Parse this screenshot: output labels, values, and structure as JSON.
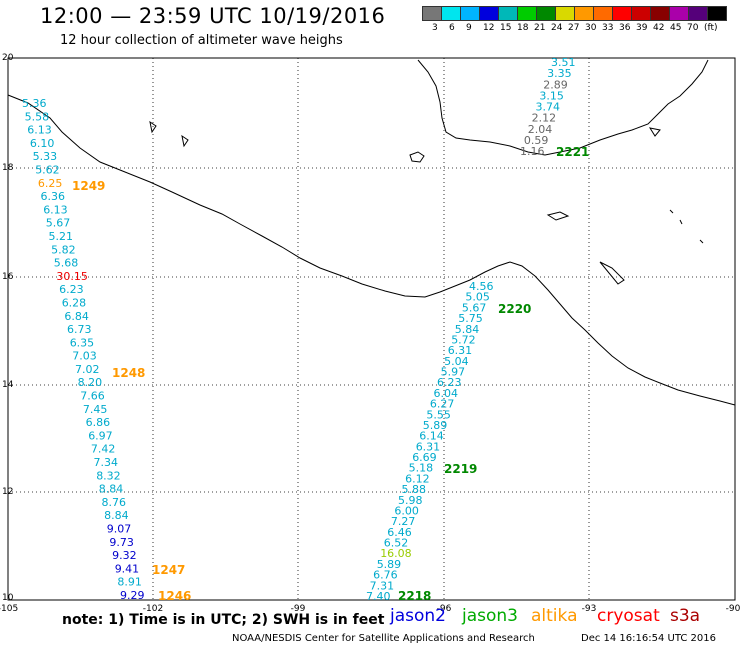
{
  "header": {
    "title": "12:00 — 23:59 UTC 10/19/2016",
    "subtitle": "12 hour collection of altimeter wave heighs"
  },
  "legend": {
    "colors": [
      "#777777",
      "#00e5ee",
      "#00b4ff",
      "#0000dd",
      "#00b8b8",
      "#00cc00",
      "#008800",
      "#d9d900",
      "#ff9900",
      "#ff6a00",
      "#ff0000",
      "#cc0000",
      "#880000",
      "#aa00aa",
      "#55007a",
      "#000000"
    ],
    "labels": [
      "3",
      "6",
      "9",
      "12",
      "15",
      "18",
      "21",
      "24",
      "27",
      "30",
      "33",
      "36",
      "39",
      "42",
      "45",
      "70",
      "(ft)"
    ]
  },
  "axes": {
    "lon_ticks": [
      "-105",
      "-102",
      "-99",
      "-96",
      "-93",
      "-90"
    ],
    "lat_ticks": [
      "20",
      "18",
      "16",
      "14",
      "12",
      "10"
    ]
  },
  "passes": {
    "left": [
      "5.36",
      "5.58",
      "6.13",
      "6.10",
      "5.33",
      "5.62",
      "6.25",
      "6.36",
      "6.13",
      "5.67",
      "5.21",
      "5.82",
      "5.68",
      "30.15",
      "6.23",
      "6.28",
      "6.84",
      "6.73",
      "6.35",
      "7.03",
      "7.02",
      "8.20",
      "7.66",
      "7.45",
      "6.86",
      "6.97",
      "7.42",
      "7.34",
      "8.32",
      "8.84",
      "8.76",
      "8.84",
      "9.07",
      "9.73",
      "9.32",
      "9.41",
      "8.91",
      "9.29"
    ],
    "left_colors": [
      "c",
      "c",
      "c",
      "c",
      "c",
      "c",
      "o",
      "c",
      "c",
      "c",
      "c",
      "c",
      "c",
      "r",
      "c",
      "c",
      "c",
      "c",
      "c",
      "c",
      "c",
      "c",
      "c",
      "c",
      "c",
      "c",
      "c",
      "c",
      "c",
      "c",
      "c",
      "c",
      "b",
      "b",
      "b",
      "b",
      "c",
      "b"
    ],
    "top": [
      "3.51",
      "3.35",
      "2.89",
      "3.15",
      "3.74",
      "2.12",
      "2.04",
      "0.59",
      "1.16"
    ],
    "top_colors": [
      "c",
      "c",
      "g",
      "c",
      "c",
      "g",
      "g",
      "g",
      "g"
    ],
    "mid": [
      "4.56",
      "5.05",
      "5.67",
      "5.75",
      "5.84",
      "5.72",
      "6.31",
      "5.04",
      "5.97",
      "6.23",
      "6.04",
      "6.27",
      "5.55",
      "5.89",
      "6.14",
      "6.31",
      "6.69",
      "5.18",
      "6.12",
      "5.88",
      "5.98",
      "6.00",
      "7.27",
      "6.46",
      "6.52",
      "16.08",
      "5.89",
      "6.76",
      "7.31",
      "7.40"
    ],
    "mid_colors": [
      "c",
      "c",
      "c",
      "c",
      "c",
      "c",
      "c",
      "c",
      "c",
      "c",
      "c",
      "c",
      "c",
      "c",
      "c",
      "c",
      "c",
      "c",
      "c",
      "c",
      "c",
      "c",
      "c",
      "c",
      "c",
      "y",
      "c",
      "c",
      "c",
      "c"
    ]
  },
  "times": {
    "t1249": "1249",
    "t1248": "1248",
    "t1247": "1247",
    "t1246": "1246",
    "t2221": "2221",
    "t2220": "2220",
    "t2219": "2219",
    "t2218": "2218"
  },
  "footer": {
    "note": "note: 1) Time is in UTC; 2) SWH is in feet",
    "sat_jason2": "jason2",
    "sat_jason3": "jason3",
    "sat_altika": "altika",
    "sat_cryosat": "cryosat",
    "sat_s3a": "s3a",
    "credit": "NOAA/NESDIS Center for Satellite Applications and Research",
    "timestamp": "Dec 14 16:16:54 UTC 2016"
  }
}
